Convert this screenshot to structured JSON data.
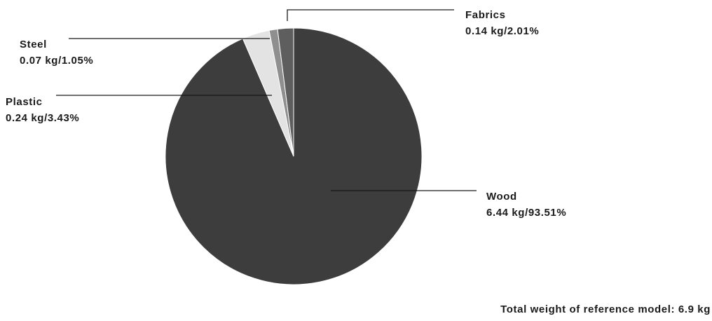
{
  "chart_data": {
    "type": "pie",
    "slices": [
      {
        "label": "Wood",
        "weight": "6.44 kg",
        "percent": 93.51,
        "value_text": "6.44 kg/93.51%",
        "color": "#3d3d3d"
      },
      {
        "label": "Plastic",
        "weight": "0.24 kg",
        "percent": 3.43,
        "value_text": "0.24 kg/3.43%",
        "color": "#e3e3e3"
      },
      {
        "label": "Steel",
        "weight": "0.07 kg",
        "percent": 1.05,
        "value_text": "0.07 kg/1.05%",
        "color": "#8f8f8f"
      },
      {
        "label": "Fabrics",
        "weight": "0.14 kg",
        "percent": 2.01,
        "value_text": "0.14 kg/2.01%",
        "color": "#5e5e5e"
      }
    ],
    "footnote": "Total weight of reference model: 6.9 kg"
  }
}
